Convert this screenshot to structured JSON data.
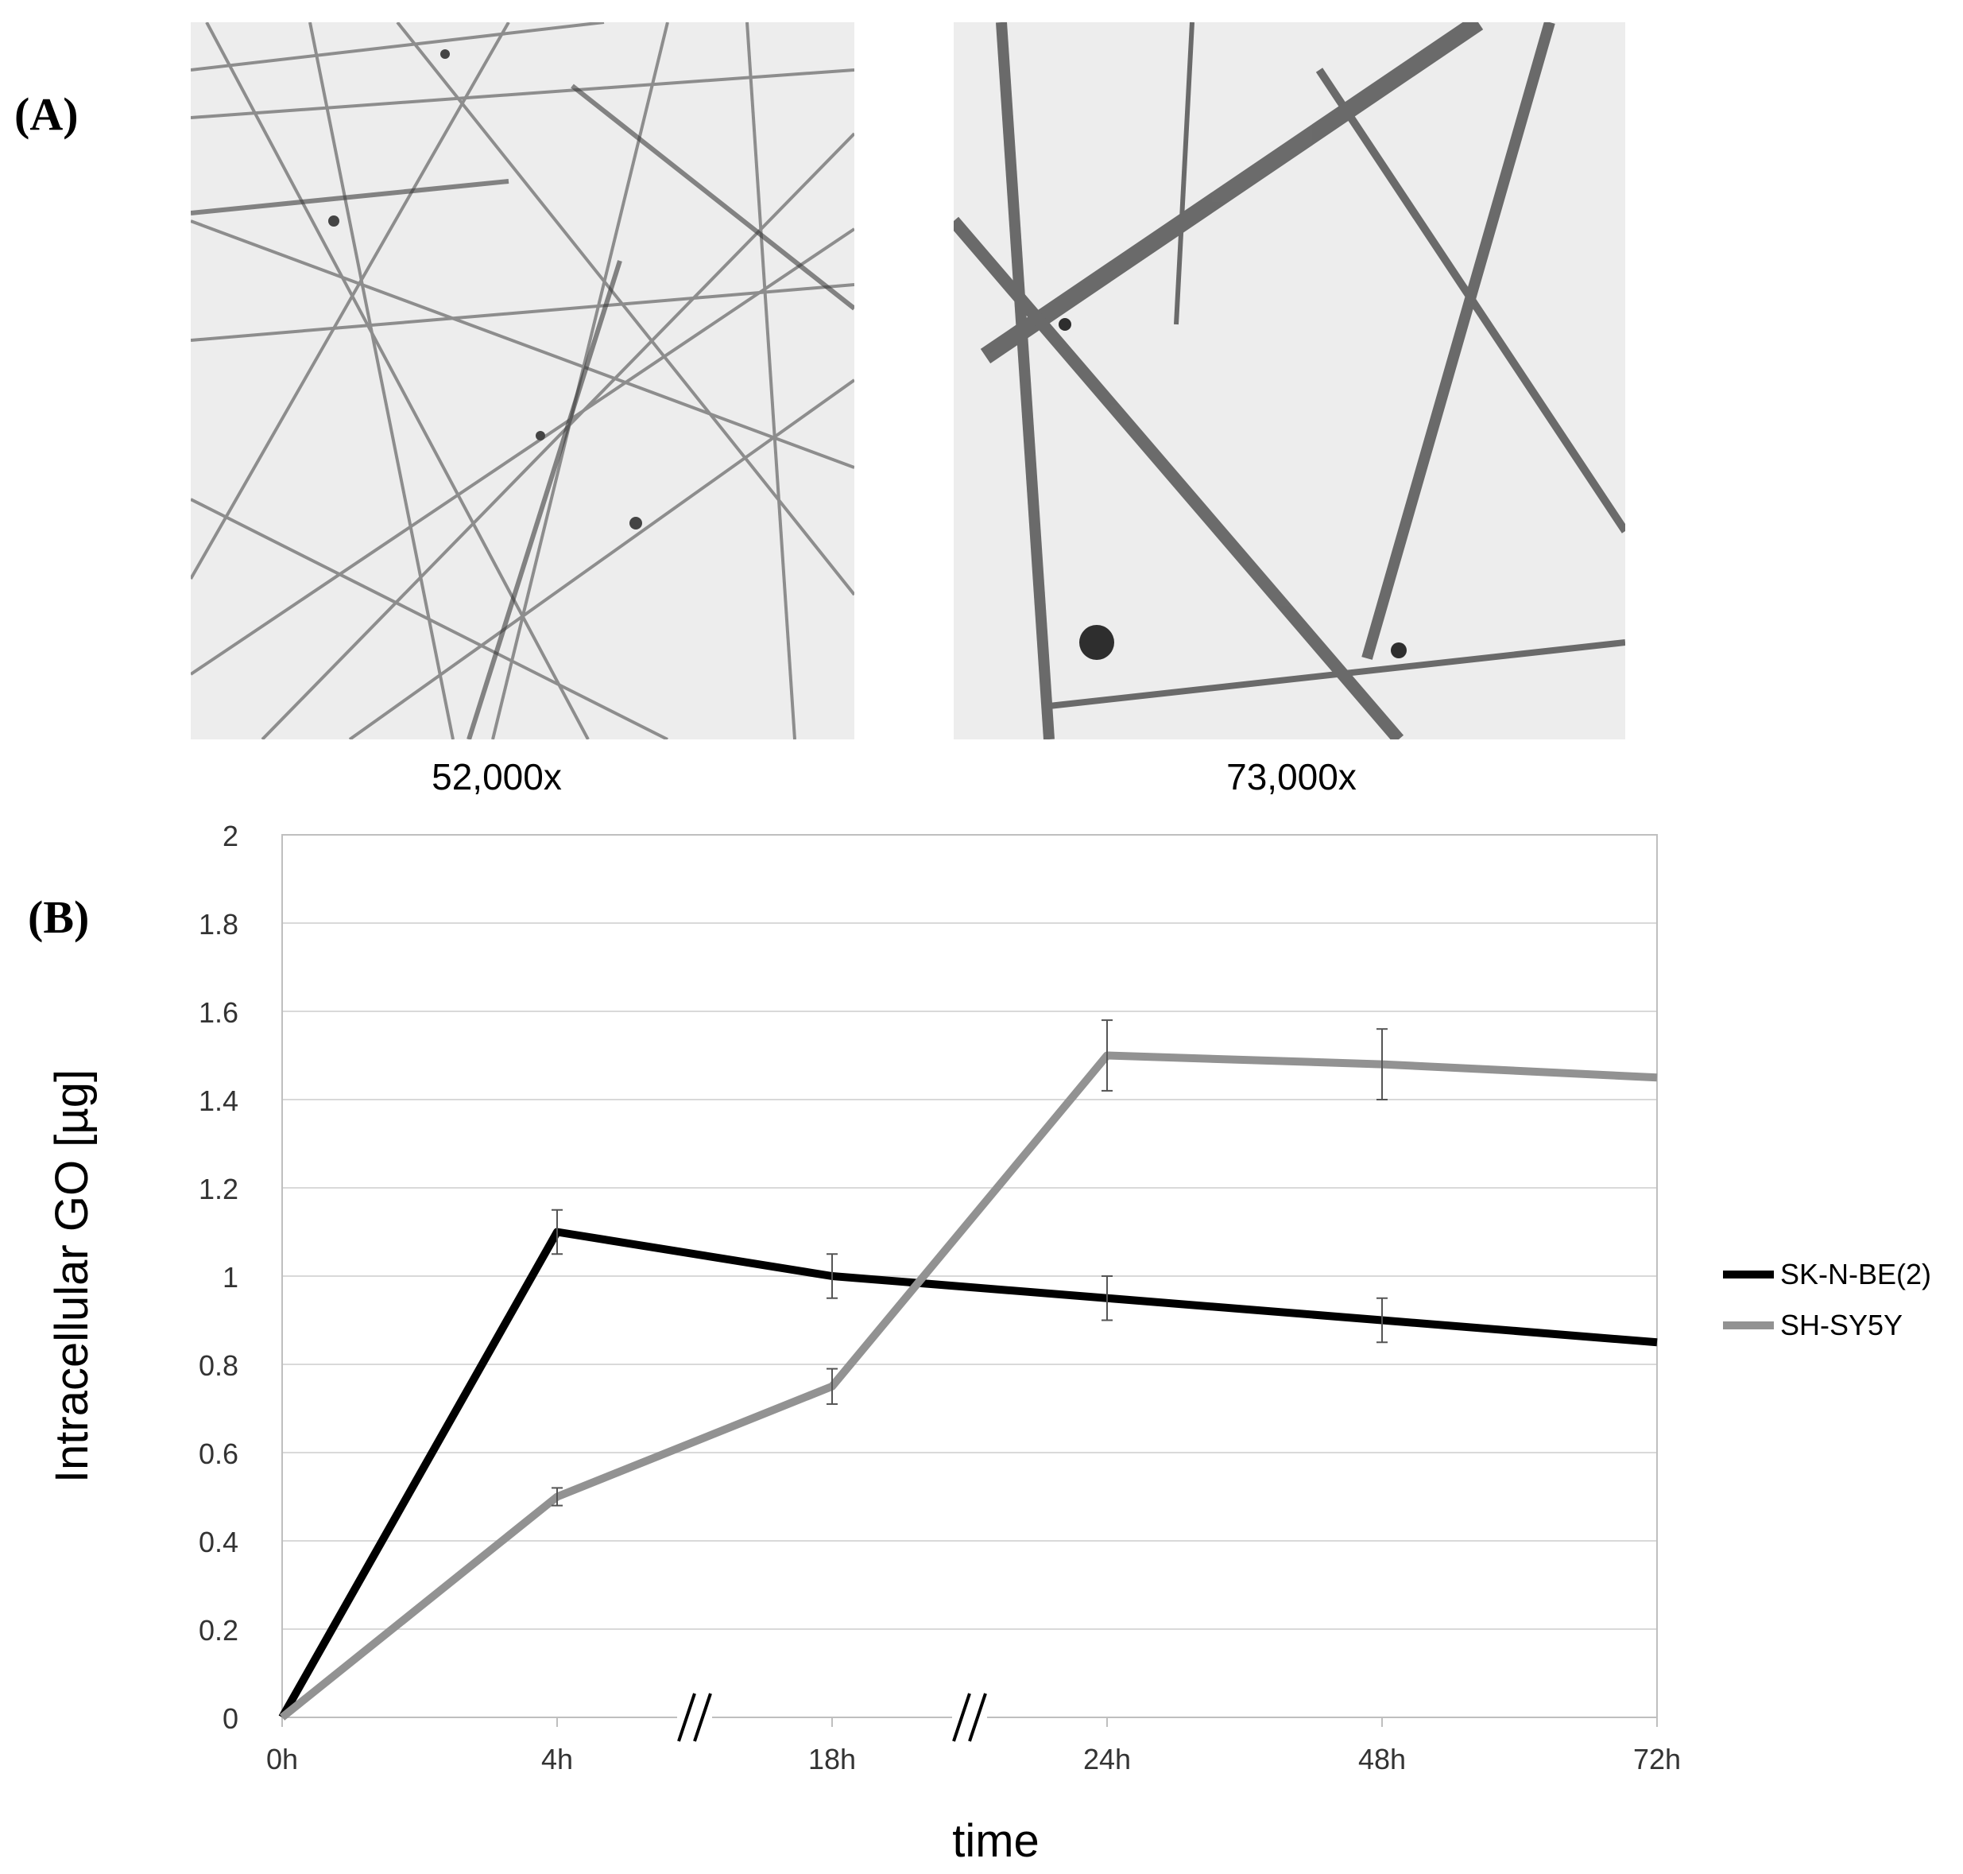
{
  "panels": {
    "a_label": "(A)",
    "b_label": "(B)",
    "micrograph_left_caption": "52,000x",
    "micrograph_right_caption": "73,000x"
  },
  "chart_data": {
    "type": "line",
    "categories": [
      "0h",
      "4h",
      "18h",
      "24h",
      "48h",
      "72h"
    ],
    "xlabel": "time",
    "ylabel": "Intracellular GO [µg]",
    "ylim": [
      0,
      2
    ],
    "yticks": [
      "0",
      "0.2",
      "0.4",
      "0.6",
      "0.8",
      "1",
      "1.2",
      "1.4",
      "1.6",
      "1.8",
      "2"
    ],
    "grid": true,
    "axis_breaks_between": [
      [
        "4h",
        "18h"
      ],
      [
        "18h",
        "24h"
      ]
    ],
    "legend_position": "right",
    "series": [
      {
        "name": "SK-N-BE(2)",
        "color": "#000000",
        "values": [
          0,
          1.1,
          1.0,
          0.95,
          0.9,
          0.85
        ],
        "errors": [
          0,
          0.05,
          0.05,
          0.05,
          0.05,
          0
        ]
      },
      {
        "name": "SH-SY5Y",
        "color": "#929292",
        "values": [
          0,
          0.5,
          0.75,
          1.5,
          1.48,
          1.45
        ],
        "errors": [
          0,
          0.02,
          0.04,
          0.08,
          0.08,
          0
        ]
      }
    ]
  }
}
